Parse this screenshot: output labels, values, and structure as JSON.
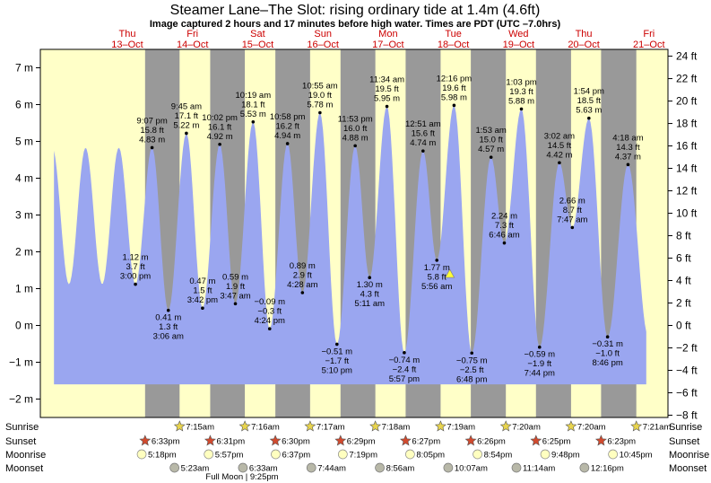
{
  "title": "Steamer Lane–The Slot: rising  ordinary tide at 1.4m (4.6ft)",
  "subtitle": "Image captured 2 hours and 17 minutes before high water. Times are PDT (UTC –7.0hrs)",
  "chart_data": {
    "type": "area",
    "y_left": {
      "unit": "m",
      "range": [
        -2.5,
        7.5
      ],
      "ticks": [
        -2,
        -1,
        0,
        1,
        2,
        3,
        4,
        5,
        6,
        7
      ],
      "labels": [
        "−2 m",
        "−1 m",
        "0 m",
        "1 m",
        "2 m",
        "3 m",
        "4 m",
        "5 m",
        "6 m",
        "7 m"
      ]
    },
    "y_right": {
      "unit": "ft",
      "ticks": [
        -8,
        -6,
        -4,
        -2,
        0,
        2,
        4,
        6,
        8,
        10,
        12,
        14,
        16,
        18,
        20,
        22,
        24
      ],
      "labels": [
        "−8 ft",
        "−6 ft",
        "−4 ft",
        "−2 ft",
        "0 ft",
        "2 ft",
        "4 ft",
        "6 ft",
        "8 ft",
        "10 ft",
        "12 ft",
        "14 ft",
        "16 ft",
        "18 ft",
        "20 ft",
        "22 ft",
        "24 ft"
      ]
    },
    "x_range_hours": [
      -20,
      211
    ],
    "days": [
      {
        "name": "Thu",
        "date": "13–Oct"
      },
      {
        "name": "Fri",
        "date": "14–Oct"
      },
      {
        "name": "Sat",
        "date": "15–Oct"
      },
      {
        "name": "Sun",
        "date": "16–Oct"
      },
      {
        "name": "Mon",
        "date": "17–Oct"
      },
      {
        "name": "Tue",
        "date": "18–Oct"
      },
      {
        "name": "Wed",
        "date": "19–Oct"
      },
      {
        "name": "Thu",
        "date": "20–Oct"
      },
      {
        "name": "Fri",
        "date": "21–Oct"
      }
    ],
    "tides": [
      {
        "day": 0,
        "t": "3:00 pm",
        "m": 1.12,
        "label": [
          "1.12 m",
          "3.7 ft",
          "3:00 pm"
        ],
        "below": false
      },
      {
        "day": 0,
        "t": "9:07 pm",
        "m": 4.83,
        "label": [
          "9:07 pm",
          "15.8 ft",
          "4.83 m"
        ],
        "below": false
      },
      {
        "day": 1,
        "t": "3:06 am",
        "m": 0.41,
        "label": [
          "0.41 m",
          "1.3 ft",
          "3:06 am"
        ],
        "below": true
      },
      {
        "day": 1,
        "t": "9:45 am",
        "m": 5.22,
        "label": [
          "9:45 am",
          "17.1 ft",
          "5.22 m"
        ],
        "below": false
      },
      {
        "day": 1,
        "t": "3:42 pm",
        "m": 0.47,
        "label": [
          "0.47 m",
          "1.5 ft",
          "3:42 pm"
        ],
        "below": false
      },
      {
        "day": 1,
        "t": "10:02 pm",
        "m": 4.92,
        "label": [
          "10:02 pm",
          "16.1 ft",
          "4.92 m"
        ],
        "below": false
      },
      {
        "day": 2,
        "t": "3:47 am",
        "m": 0.59,
        "label": [
          "0.59 m",
          "1.9 ft",
          "3:47 am"
        ],
        "below": false
      },
      {
        "day": 2,
        "t": "10:19 am",
        "m": 5.53,
        "label": [
          "10:19 am",
          "18.1 ft",
          "5.53 m"
        ],
        "below": false
      },
      {
        "day": 2,
        "t": "4:24 pm",
        "m": -0.09,
        "label": [
          "−0.09 m",
          "−0.3 ft",
          "4:24 pm"
        ],
        "below": false
      },
      {
        "day": 2,
        "t": "10:58 pm",
        "m": 4.94,
        "label": [
          "10:58 pm",
          "16.2 ft",
          "4.94 m"
        ],
        "below": false
      },
      {
        "day": 3,
        "t": "4:28 am",
        "m": 0.89,
        "label": [
          "0.89 m",
          "2.9 ft",
          "4:28 am"
        ],
        "below": false
      },
      {
        "day": 3,
        "t": "10:55 am",
        "m": 5.78,
        "label": [
          "10:55 am",
          "19.0 ft",
          "5.78 m"
        ],
        "below": false
      },
      {
        "day": 3,
        "t": "5:10 pm",
        "m": -0.51,
        "label": [
          "−0.51 m",
          "−1.7 ft",
          "5:10 pm"
        ],
        "below": true
      },
      {
        "day": 3,
        "t": "11:53 pm",
        "m": 4.88,
        "label": [
          "11:53 pm",
          "16.0 ft",
          "4.88 m"
        ],
        "below": false
      },
      {
        "day": 4,
        "t": "5:11 am",
        "m": 1.3,
        "label": [
          "1.30 m",
          "4.3 ft",
          "5:11 am"
        ],
        "below": true
      },
      {
        "day": 4,
        "t": "11:34 am",
        "m": 5.95,
        "label": [
          "11:34 am",
          "19.5 ft",
          "5.95 m"
        ],
        "below": false
      },
      {
        "day": 4,
        "t": "5:57 pm",
        "m": -0.74,
        "label": [
          "−0.74 m",
          "−2.4 ft",
          "5:57 pm"
        ],
        "below": true
      },
      {
        "day": 5,
        "t": "12:51 am",
        "m": 4.74,
        "label": [
          "12:51 am",
          "15.6 ft",
          "4.74 m"
        ],
        "below": false
      },
      {
        "day": 5,
        "t": "5:56 am",
        "m": 1.77,
        "label": [
          "1.77 m",
          "5.8 ft",
          "5:56 am"
        ],
        "below": true
      },
      {
        "day": 5,
        "t": "12:16 pm",
        "m": 5.98,
        "label": [
          "12:16 pm",
          "19.6 ft",
          "5.98 m"
        ],
        "below": false
      },
      {
        "day": 5,
        "t": "6:48 pm",
        "m": -0.75,
        "label": [
          "−0.75 m",
          "−2.5 ft",
          "6:48 pm"
        ],
        "below": true
      },
      {
        "day": 6,
        "t": "1:53 am",
        "m": 4.57,
        "label": [
          "1:53 am",
          "15.0 ft",
          "4.57 m"
        ],
        "below": false
      },
      {
        "day": 6,
        "t": "6:46 am",
        "m": 2.24,
        "label": [
          "2.24 m",
          "7.3 ft",
          "6:46 am"
        ],
        "below": false
      },
      {
        "day": 6,
        "t": "1:03 pm",
        "m": 5.88,
        "label": [
          "1:03 pm",
          "19.3 ft",
          "5.88 m"
        ],
        "below": false
      },
      {
        "day": 6,
        "t": "7:44 pm",
        "m": -0.59,
        "label": [
          "−0.59 m",
          "−1.9 ft",
          "7:44 pm"
        ],
        "below": true
      },
      {
        "day": 7,
        "t": "3:02 am",
        "m": 4.42,
        "label": [
          "3:02 am",
          "14.5 ft",
          "4.42 m"
        ],
        "below": false
      },
      {
        "day": 7,
        "t": "7:47 am",
        "m": 2.66,
        "label": [
          "2.66 m",
          "8.7 ft",
          "7:47 am"
        ],
        "below": false
      },
      {
        "day": 7,
        "t": "1:54 pm",
        "m": 5.63,
        "label": [
          "1:54 pm",
          "18.5 ft",
          "5.63 m"
        ],
        "below": false
      },
      {
        "day": 7,
        "t": "8:46 pm",
        "m": -0.31,
        "label": [
          "−0.31 m",
          "−1.0 ft",
          "8:46 pm"
        ],
        "below": true
      },
      {
        "day": 8,
        "t": "4:18 am",
        "m": 4.37,
        "label": [
          "4:18 am",
          "14.3 ft",
          "4.37 m"
        ],
        "below": false
      }
    ],
    "current_level_m": 1.4,
    "night_shading": "grey",
    "day_shading": "pale yellow",
    "water_color": "#9aa6f0",
    "rows": {
      "labels_left": [
        "Sunrise",
        "Sunset",
        "Moonrise",
        "Moonset"
      ],
      "labels_right": [
        "Sunrise",
        "Sunset",
        "Moonrise",
        "Moonset"
      ],
      "sunrise": [
        {
          "day": 1,
          "t": "7:15am"
        },
        {
          "day": 2,
          "t": "7:16am"
        },
        {
          "day": 3,
          "t": "7:17am"
        },
        {
          "day": 4,
          "t": "7:18am"
        },
        {
          "day": 5,
          "t": "7:19am"
        },
        {
          "day": 6,
          "t": "7:20am"
        },
        {
          "day": 7,
          "t": "7:20am"
        },
        {
          "day": 8,
          "t": "7:21am"
        }
      ],
      "sunset": [
        {
          "day": 0,
          "t": "6:33pm"
        },
        {
          "day": 1,
          "t": "6:31pm"
        },
        {
          "day": 2,
          "t": "6:30pm"
        },
        {
          "day": 3,
          "t": "6:29pm"
        },
        {
          "day": 4,
          "t": "6:27pm"
        },
        {
          "day": 5,
          "t": "6:26pm"
        },
        {
          "day": 6,
          "t": "6:25pm"
        },
        {
          "day": 7,
          "t": "6:23pm"
        }
      ],
      "moonrise": [
        {
          "day": 0,
          "t": "5:18pm"
        },
        {
          "day": 1,
          "t": "5:57pm"
        },
        {
          "day": 2,
          "t": "6:37pm"
        },
        {
          "day": 3,
          "t": "7:19pm"
        },
        {
          "day": 4,
          "t": "8:05pm"
        },
        {
          "day": 5,
          "t": "8:54pm"
        },
        {
          "day": 6,
          "t": "9:48pm"
        },
        {
          "day": 7,
          "t": "10:45pm"
        }
      ],
      "moonset": [
        {
          "day": 1,
          "t": "5:23am"
        },
        {
          "day": 2,
          "t": "6:33am"
        },
        {
          "day": 3,
          "t": "7:44am"
        },
        {
          "day": 4,
          "t": "8:56am"
        },
        {
          "day": 5,
          "t": "10:07am"
        },
        {
          "day": 6,
          "t": "11:14am"
        },
        {
          "day": 7,
          "t": "12:16pm"
        }
      ],
      "note": "Full Moon | 9:25pm"
    }
  }
}
